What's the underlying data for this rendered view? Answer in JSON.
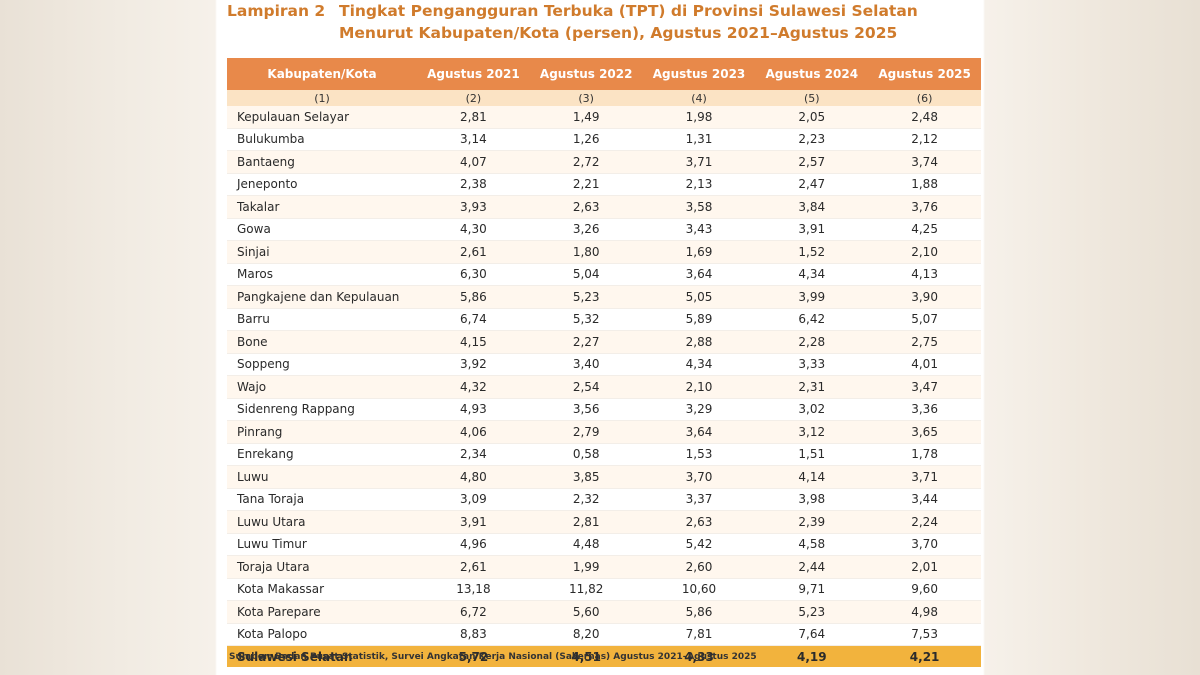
{
  "title": {
    "label": "Lampiran 2",
    "line1": "Tingkat Pengangguran Terbuka (TPT) di Provinsi Sulawesi Selatan",
    "line2": "Menurut Kabupaten/Kota (persen), Agustus 2021–Agustus 2025"
  },
  "table": {
    "headers": [
      "Kabupaten/Kota",
      "Agustus 2021",
      "Agustus 2022",
      "Agustus 2023",
      "Agustus 2024",
      "Agustus 2025"
    ],
    "column_numbers": [
      "(1)",
      "(2)",
      "(3)",
      "(4)",
      "(5)",
      "(6)"
    ],
    "rows": [
      [
        "Kepulauan Selayar",
        "2,81",
        "1,49",
        "1,98",
        "2,05",
        "2,48"
      ],
      [
        "Bulukumba",
        "3,14",
        "1,26",
        "1,31",
        "2,23",
        "2,12"
      ],
      [
        "Bantaeng",
        "4,07",
        "2,72",
        "3,71",
        "2,57",
        "3,74"
      ],
      [
        "Jeneponto",
        "2,38",
        "2,21",
        "2,13",
        "2,47",
        "1,88"
      ],
      [
        "Takalar",
        "3,93",
        "2,63",
        "3,58",
        "3,84",
        "3,76"
      ],
      [
        "Gowa",
        "4,30",
        "3,26",
        "3,43",
        "3,91",
        "4,25"
      ],
      [
        "Sinjai",
        "2,61",
        "1,80",
        "1,69",
        "1,52",
        "2,10"
      ],
      [
        "Maros",
        "6,30",
        "5,04",
        "3,64",
        "4,34",
        "4,13"
      ],
      [
        "Pangkajene dan Kepulauan",
        "5,86",
        "5,23",
        "5,05",
        "3,99",
        "3,90"
      ],
      [
        "Barru",
        "6,74",
        "5,32",
        "5,89",
        "6,42",
        "5,07"
      ],
      [
        "Bone",
        "4,15",
        "2,27",
        "2,88",
        "2,28",
        "2,75"
      ],
      [
        "Soppeng",
        "3,92",
        "3,40",
        "4,34",
        "3,33",
        "4,01"
      ],
      [
        "Wajo",
        "4,32",
        "2,54",
        "2,10",
        "2,31",
        "3,47"
      ],
      [
        "Sidenreng Rappang",
        "4,93",
        "3,56",
        "3,29",
        "3,02",
        "3,36"
      ],
      [
        "Pinrang",
        "4,06",
        "2,79",
        "3,64",
        "3,12",
        "3,65"
      ],
      [
        "Enrekang",
        "2,34",
        "0,58",
        "1,53",
        "1,51",
        "1,78"
      ],
      [
        "Luwu",
        "4,80",
        "3,85",
        "3,70",
        "4,14",
        "3,71"
      ],
      [
        "Tana Toraja",
        "3,09",
        "2,32",
        "3,37",
        "3,98",
        "3,44"
      ],
      [
        "Luwu Utara",
        "3,91",
        "2,81",
        "2,63",
        "2,39",
        "2,24"
      ],
      [
        "Luwu Timur",
        "4,96",
        "4,48",
        "5,42",
        "4,58",
        "3,70"
      ],
      [
        "Toraja Utara",
        "2,61",
        "1,99",
        "2,60",
        "2,44",
        "2,01"
      ],
      [
        "Kota Makassar",
        "13,18",
        "11,82",
        "10,60",
        "9,71",
        "9,60"
      ],
      [
        "Kota Parepare",
        "6,72",
        "5,60",
        "5,86",
        "5,23",
        "4,98"
      ],
      [
        "Kota Palopo",
        "8,83",
        "8,20",
        "7,81",
        "7,64",
        "7,53"
      ]
    ],
    "total": [
      "Sulawesi Selatan",
      "5,72",
      "4,51",
      "4,33",
      "4,19",
      "4,21"
    ]
  },
  "source": "Sumber: Badan Pusat Statistik, Survei Angkatan Kerja Nasional (Sakernas) Agustus 2021–Agustus 2025",
  "colors": {
    "title": "#d07b2c",
    "header_bg": "#e8894a",
    "colnum_bg": "#fbe3c4",
    "total_bg": "#f2b33d"
  }
}
